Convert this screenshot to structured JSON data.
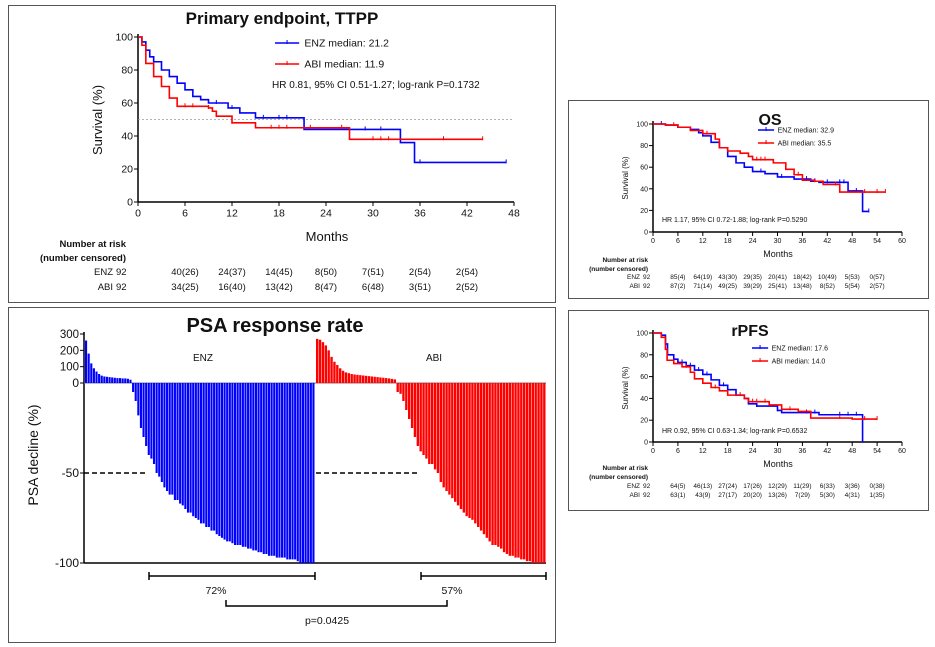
{
  "chart_data": [
    {
      "type": "line",
      "title": "Primary endpoint, TTPP",
      "xlabel": "Months",
      "ylabel": "Survival (%)",
      "xlim": [
        0,
        48
      ],
      "xticks": [
        0,
        6,
        12,
        18,
        24,
        30,
        36,
        42,
        48
      ],
      "ylim": [
        0,
        100
      ],
      "yticks": [
        0,
        20,
        40,
        60,
        80,
        100
      ],
      "reference_line": 50,
      "annotation": "HR 0.81, 95% CI 0.51-1.27; log-rank P=0.1732",
      "legend_placement": "top-right",
      "series": [
        {
          "name": "ENZ median: 21.2",
          "color": "#0000ff",
          "end": 47,
          "steps": [
            [
              0,
              100
            ],
            [
              0.5,
              97
            ],
            [
              1,
              92
            ],
            [
              1.5,
              88
            ],
            [
              2,
              85
            ],
            [
              3,
              80
            ],
            [
              4,
              76
            ],
            [
              5,
              72
            ],
            [
              6,
              68
            ],
            [
              7,
              64
            ],
            [
              8,
              62
            ],
            [
              9,
              60
            ],
            [
              11.5,
              57
            ],
            [
              13,
              54
            ],
            [
              15,
              51
            ],
            [
              21.2,
              44
            ],
            [
              33.5,
              36
            ],
            [
              35.3,
              24
            ]
          ],
          "censored": [
            10,
            12,
            16,
            18,
            19,
            29,
            31,
            36,
            47
          ]
        },
        {
          "name": "ABI median: 11.9",
          "color": "#ff0000",
          "end": 44,
          "steps": [
            [
              0,
              100
            ],
            [
              0.5,
              95
            ],
            [
              1,
              84
            ],
            [
              2,
              76
            ],
            [
              3,
              70
            ],
            [
              4,
              63
            ],
            [
              5,
              58
            ],
            [
              9,
              57
            ],
            [
              9.5,
              55
            ],
            [
              10,
              52
            ],
            [
              12,
              48
            ],
            [
              15,
              45
            ],
            [
              27,
              38
            ]
          ],
          "censored": [
            6,
            7,
            9,
            12,
            17,
            18,
            19,
            22,
            26,
            30,
            31,
            32,
            39,
            44
          ]
        }
      ],
      "risk_table": {
        "header": [
          "Number at risk",
          "(number censored)"
        ],
        "rows": [
          {
            "label": "ENZ",
            "values": [
              "92",
              "40(26)",
              "24(37)",
              "14(45)",
              "8(50)",
              "7(51)",
              "2(54)",
              "2(54)"
            ]
          },
          {
            "label": "ABI",
            "values": [
              "92",
              "34(25)",
              "16(40)",
              "13(42)",
              "8(47)",
              "6(48)",
              "3(51)",
              "2(52)"
            ]
          }
        ]
      }
    },
    {
      "type": "line",
      "title": "OS",
      "xlabel": "Months",
      "ylabel": "Survival (%)",
      "xlim": [
        0,
        60
      ],
      "xticks": [
        0,
        6,
        12,
        18,
        24,
        30,
        36,
        42,
        48,
        54,
        60
      ],
      "ylim": [
        0,
        100
      ],
      "yticks": [
        0,
        20,
        40,
        60,
        80,
        100
      ],
      "annotation": "HR 1.17, 95% CI 0.72-1.88; log-rank P=0.5290",
      "legend_placement": "top-right",
      "series": [
        {
          "name": "ENZ median: 32.9",
          "color": "#0000ff",
          "end": 52,
          "steps": [
            [
              0,
              100
            ],
            [
              3,
              99
            ],
            [
              6,
              97
            ],
            [
              9,
              95
            ],
            [
              11,
              92
            ],
            [
              12,
              89
            ],
            [
              14,
              83
            ],
            [
              16,
              78
            ],
            [
              18,
              70
            ],
            [
              20,
              64
            ],
            [
              22,
              60
            ],
            [
              24,
              56
            ],
            [
              27,
              54
            ],
            [
              30,
              51
            ],
            [
              34,
              49
            ],
            [
              38,
              47
            ],
            [
              40,
              46
            ],
            [
              47,
              38
            ],
            [
              50.5,
              19
            ]
          ],
          "censored": [
            2,
            9,
            26,
            31,
            37,
            39,
            42,
            45,
            46,
            49,
            52
          ]
        },
        {
          "name": "ABI median: 35.5",
          "color": "#ff0000",
          "end": 56,
          "steps": [
            [
              0,
              100
            ],
            [
              3,
              99
            ],
            [
              6,
              97
            ],
            [
              9,
              94
            ],
            [
              12,
              91
            ],
            [
              15,
              86
            ],
            [
              16,
              78
            ],
            [
              18,
              75
            ],
            [
              21,
              73
            ],
            [
              23,
              70
            ],
            [
              24,
              67
            ],
            [
              29,
              64
            ],
            [
              32,
              58
            ],
            [
              34,
              53
            ],
            [
              36,
              48
            ],
            [
              39,
              47
            ],
            [
              41,
              44
            ],
            [
              45,
              37
            ]
          ],
          "censored": [
            5,
            13,
            25,
            26,
            27,
            35,
            44,
            51,
            54,
            56
          ]
        }
      ],
      "risk_table": {
        "header": [
          "Number at risk",
          "(number censored)"
        ],
        "rows": [
          {
            "label": "ENZ",
            "values": [
              "92",
              "85(4)",
              "64(19)",
              "43(30)",
              "29(35)",
              "20(41)",
              "18(42)",
              "10(49)",
              "5(53)",
              "0(57)"
            ]
          },
          {
            "label": "ABI",
            "values": [
              "92",
              "87(2)",
              "71(14)",
              "49(25)",
              "39(29)",
              "25(41)",
              "13(48)",
              "8(52)",
              "5(54)",
              "2(57)"
            ]
          }
        ]
      }
    },
    {
      "type": "line",
      "title": "rPFS",
      "xlabel": "Months",
      "ylabel": "Survival (%)",
      "xlim": [
        0,
        60
      ],
      "xticks": [
        0,
        6,
        12,
        18,
        24,
        30,
        36,
        42,
        48,
        54,
        60
      ],
      "ylim": [
        0,
        100
      ],
      "yticks": [
        0,
        20,
        40,
        60,
        80,
        100
      ],
      "annotation": "HR 0.92, 95% CI 0.63-1.34; log-rank P=0.6532",
      "legend_placement": "top-right",
      "series": [
        {
          "name": "ENZ median: 17.6",
          "color": "#0000ff",
          "end": 50.5,
          "steps": [
            [
              0,
              100
            ],
            [
              2,
              98
            ],
            [
              3,
              90
            ],
            [
              3.5,
              80
            ],
            [
              5,
              76
            ],
            [
              6,
              73
            ],
            [
              8,
              70
            ],
            [
              10,
              66
            ],
            [
              12,
              62
            ],
            [
              14,
              57
            ],
            [
              16,
              52
            ],
            [
              18,
              48
            ],
            [
              20,
              43
            ],
            [
              22,
              40
            ],
            [
              23,
              35
            ],
            [
              25,
              33
            ],
            [
              30,
              29
            ],
            [
              31,
              27
            ],
            [
              40,
              25
            ],
            [
              50.5,
              0
            ]
          ],
          "censored": [
            7,
            9,
            11,
            13,
            17,
            25,
            30,
            37,
            39,
            45,
            47,
            49
          ]
        },
        {
          "name": "ABI median: 14.0",
          "color": "#ff0000",
          "end": 54,
          "steps": [
            [
              0,
              100
            ],
            [
              2,
              96
            ],
            [
              3,
              85
            ],
            [
              3.4,
              75
            ],
            [
              5,
              72
            ],
            [
              7,
              69
            ],
            [
              9,
              64
            ],
            [
              10,
              58
            ],
            [
              12,
              54
            ],
            [
              14,
              50
            ],
            [
              16,
              47
            ],
            [
              18,
              43
            ],
            [
              22,
              40
            ],
            [
              23,
              37
            ],
            [
              28,
              34
            ],
            [
              31,
              30
            ],
            [
              35,
              28
            ],
            [
              38,
              22
            ],
            [
              48,
              21
            ]
          ],
          "censored": [
            8,
            15,
            21,
            24,
            25,
            27,
            33,
            45,
            51,
            54
          ]
        }
      ],
      "risk_table": {
        "header": [
          "Number at risk",
          "(number censored)"
        ],
        "rows": [
          {
            "label": "ENZ",
            "values": [
              "92",
              "64(5)",
              "46(13)",
              "27(24)",
              "17(26)",
              "12(29)",
              "11(29)",
              "6(33)",
              "3(36)",
              "0(38)"
            ]
          },
          {
            "label": "ABI",
            "values": [
              "92",
              "63(1)",
              "43(9)",
              "27(17)",
              "20(20)",
              "13(26)",
              "7(29)",
              "5(30)",
              "4(31)",
              "1(35)"
            ]
          }
        ]
      }
    },
    {
      "type": "bar",
      "title": "PSA response rate",
      "ylabel": "PSA decline (%)",
      "yticks": [
        300,
        200,
        100,
        0,
        -50,
        -100
      ],
      "ylim": [
        -100,
        300
      ],
      "reference_line": -50,
      "series": [
        {
          "name": "ENZ",
          "color": "#0000ff",
          "response_rate": "72%",
          "values": [
            260,
            180,
            120,
            90,
            70,
            55,
            45,
            40,
            38,
            36,
            34,
            32,
            30,
            30,
            28,
            28,
            26,
            20,
            -5,
            -10,
            -18,
            -25,
            -30,
            -35,
            -40,
            -42,
            -45,
            -50,
            -52,
            -55,
            -58,
            -60,
            -62,
            -62,
            -65,
            -65,
            -67,
            -68,
            -70,
            -72,
            -72,
            -74,
            -75,
            -76,
            -78,
            -78,
            -80,
            -80,
            -82,
            -82,
            -84,
            -85,
            -86,
            -87,
            -88,
            -88,
            -89,
            -90,
            -90,
            -90,
            -91,
            -91,
            -92,
            -92,
            -93,
            -93,
            -94,
            -94,
            -95,
            -95,
            -96,
            -96,
            -96,
            -97,
            -97,
            -97,
            -97,
            -98,
            -98,
            -98,
            -98,
            -99,
            -100,
            -100,
            -100,
            -100,
            -100,
            -100
          ]
        },
        {
          "name": "ABI",
          "color": "#ff0000",
          "response_rate": "57%",
          "values": [
            270,
            265,
            250,
            230,
            200,
            160,
            130,
            110,
            90,
            75,
            65,
            60,
            55,
            52,
            50,
            48,
            46,
            44,
            42,
            40,
            38,
            36,
            34,
            32,
            30,
            28,
            25,
            22,
            -5,
            -6,
            -10,
            -15,
            -20,
            -25,
            -30,
            -35,
            -38,
            -40,
            -42,
            -45,
            -45,
            -48,
            -50,
            -55,
            -58,
            -60,
            -62,
            -64,
            -66,
            -68,
            -70,
            -72,
            -74,
            -75,
            -76,
            -78,
            -80,
            -82,
            -84,
            -86,
            -88,
            -90,
            -90,
            -91,
            -92,
            -94,
            -95,
            -96,
            -96,
            -97,
            -97,
            -98,
            -98,
            -99,
            -99,
            -100,
            -100,
            -100,
            -100,
            -100
          ]
        }
      ],
      "comparison": "p=0.0425"
    }
  ]
}
